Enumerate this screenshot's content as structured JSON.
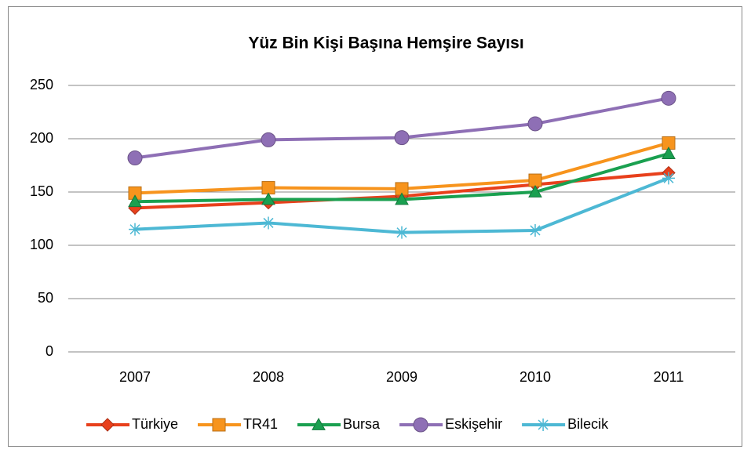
{
  "chart_data": {
    "type": "line",
    "title": "Yüz Bin Kişi Başına Hemşire Sayısı",
    "categories": [
      "2007",
      "2008",
      "2009",
      "2010",
      "2011"
    ],
    "series": [
      {
        "name": "Türkiye",
        "color": "#e8401c",
        "marker": "diamond",
        "values": [
          135,
          140,
          146,
          157,
          168
        ]
      },
      {
        "name": "TR41",
        "color": "#f7941d",
        "marker": "square",
        "values": [
          149,
          154,
          153,
          161,
          196
        ]
      },
      {
        "name": "Bursa",
        "color": "#1aa050",
        "marker": "triangle",
        "values": [
          141,
          143,
          143,
          150,
          186
        ]
      },
      {
        "name": "Eskişehir",
        "color": "#8e6fb5",
        "marker": "circle",
        "values": [
          182,
          199,
          201,
          214,
          238
        ]
      },
      {
        "name": "Bilecik",
        "color": "#4db8d4",
        "marker": "asterisk",
        "values": [
          115,
          121,
          112,
          114,
          163
        ]
      }
    ],
    "ylim": [
      0,
      250
    ],
    "yticks": [
      0,
      50,
      100,
      150,
      200,
      250
    ],
    "grid": true,
    "legend": "bottom"
  }
}
